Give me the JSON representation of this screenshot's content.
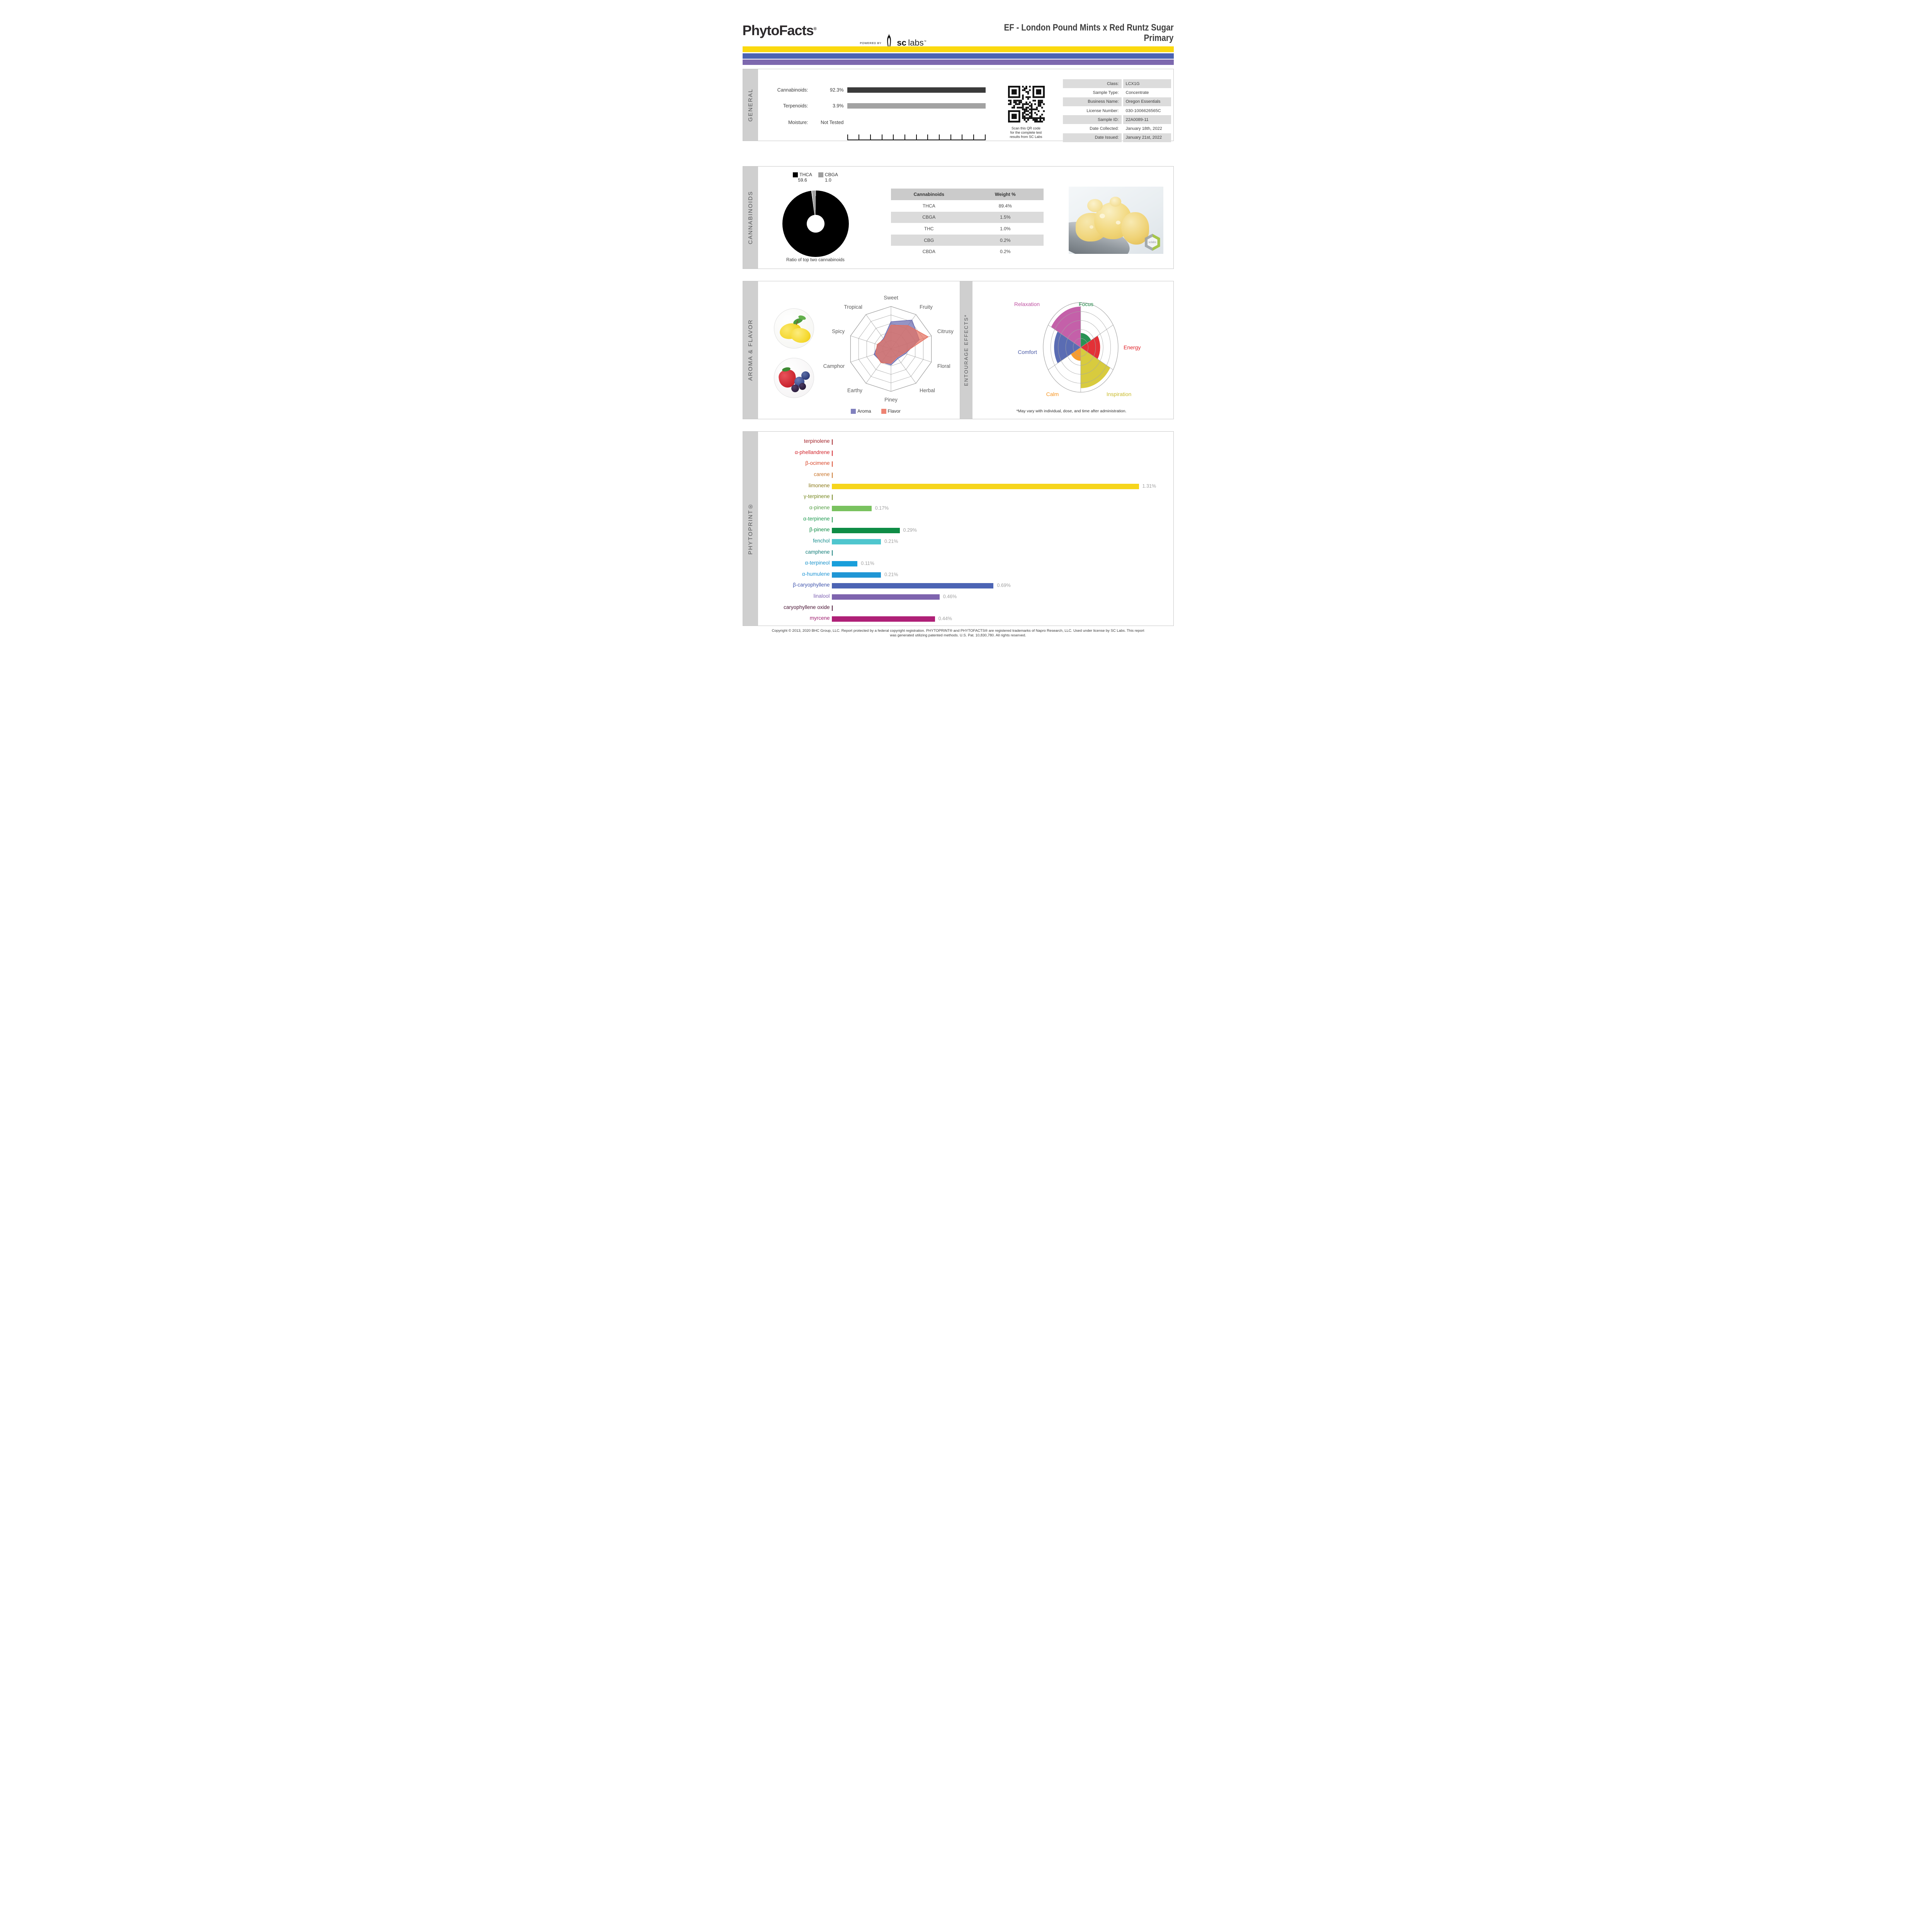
{
  "header": {
    "brand": "PhytoFacts",
    "brand_mark": "®",
    "powered_by": "POWERED BY",
    "lab_bold": "sc",
    "lab_light": "labs",
    "lab_tm": "™",
    "title": [
      "EF - London Pound Mints x Red Runtz Sugar",
      "Primary"
    ]
  },
  "accent_colors": {
    "yellow": "#FBD90E",
    "blue": "#4C64B2",
    "purple": "#7D68AE"
  },
  "general": {
    "section_label": "GENERAL",
    "summary": [
      {
        "label": "Cannabinoids:",
        "value": "92.3%",
        "bar_color": "#3A3A3A"
      },
      {
        "label": "Terpenoids:",
        "value": "3.9%",
        "bar_color": "#A2A2A2"
      },
      {
        "label": "Moisture:",
        "value": "Not Tested"
      }
    ],
    "qr_caption": [
      "Scan this QR code",
      "for the complete test",
      "results from SC Labs"
    ],
    "info_rows": [
      {
        "label": "Class:",
        "value": "LCX1G"
      },
      {
        "label": "Sample Type:",
        "value": "Concentrate"
      },
      {
        "label": "Business Name:",
        "value": "Oregon Essentials"
      },
      {
        "label": "License Number:",
        "value": "030-1006626565C"
      },
      {
        "label": "Sample ID:",
        "value": "22A0089-11"
      },
      {
        "label": "Date Collected:",
        "value": "January 18th, 2022"
      },
      {
        "label": "Date Issued:",
        "value": "January 21st, 2022"
      }
    ],
    "row_gray": "#DCDCDC"
  },
  "cannabinoids": {
    "section_label": "CANNABINOIDS",
    "donut_caption": "Ratio of top two cannabinoids",
    "table_headers": [
      "Cannabinoids",
      "Weight %"
    ],
    "table_rows": [
      [
        "THCA",
        "89.4%"
      ],
      [
        "CBGA",
        "1.5%"
      ],
      [
        "THC",
        "1.0%"
      ],
      [
        "CBG",
        "0.2%"
      ],
      [
        "CBDA",
        "0.2%"
      ]
    ],
    "header_gray": "#CBCBCB",
    "alt_gray": "#DBDBDB",
    "photo_watermark": "sclabs"
  },
  "aroma_flavor": {
    "section_label": "AROMA & FLAVOR"
  },
  "entourage": {
    "section_label": "ENTOURAGE EFFECTS*"
  },
  "phytoprint": {
    "section_label": "PHYTOPRINT®"
  },
  "footer": {
    "lines": [
      "Copyright © 2013, 2020 BHC Group, LLC. Report protected by a federal copyright registration. PHYTOPRINT® and PHYTOFACTS® are registered trademarks of Napro Research, LLC. Used under license by SC Labs. This report",
      "was generated utilizing patented methods. U.S. Pat. 10,830,780. All rights reserved."
    ]
  },
  "chart_data": [
    {
      "type": "pie",
      "donut": true,
      "title": "Ratio of top two cannabinoids",
      "labels": [
        "THCA",
        "CBGA"
      ],
      "values": [
        59.6,
        1.0
      ],
      "colors": [
        "#000000",
        "#9E9E9E"
      ],
      "legend_position": "top"
    },
    {
      "type": "radar",
      "title": "Aroma & Flavor",
      "categories": [
        "Sweet",
        "Fruity",
        "Citrusy",
        "Floral",
        "Herbal",
        "Piney",
        "Earthy",
        "Camphor",
        "Spicy",
        "Tropical"
      ],
      "rmax": 5,
      "rings": 5,
      "series": [
        {
          "name": "Aroma",
          "color": "#6B6BB0",
          "swatch": "#8080BE",
          "fill_opacity": 0.72,
          "values": [
            3.2,
            4.2,
            3.5,
            1.8,
            1.4,
            1.9,
            1.9,
            2.1,
            1.6,
            1.5
          ]
        },
        {
          "name": "Flavor",
          "color": "#E4705F",
          "swatch": "#EE8372",
          "fill_opacity": 0.72,
          "values": [
            2.8,
            3.4,
            4.6,
            1.6,
            1.2,
            1.7,
            2.0,
            1.9,
            1.7,
            1.4
          ]
        }
      ],
      "grid_color": "#9B9B9B",
      "label_color": "#5A5A5A"
    },
    {
      "type": "polar-sector",
      "title": "Entourage Effects",
      "rmax": 5,
      "rings": 5,
      "sectors": [
        {
          "name": "Focus",
          "value": 1.6,
          "color": "#168945",
          "label_color": "#16823F"
        },
        {
          "name": "Energy",
          "value": 2.6,
          "color": "#E11F26",
          "label_color": "#E01F26"
        },
        {
          "name": "Inspiration",
          "value": 4.55,
          "color": "#D5C72E",
          "label_color": "#C9BB2A"
        },
        {
          "name": "Calm",
          "value": 1.5,
          "color": "#F7941D",
          "label_color": "#F7941D"
        },
        {
          "name": "Comfort",
          "value": 3.55,
          "color": "#4C5FAD",
          "label_color": "#4B5BA7"
        },
        {
          "name": "Relaxation",
          "value": 4.55,
          "color": "#BF52A2",
          "label_color": "#BF52A2"
        }
      ],
      "footnote": "*May vary with individual, dose, and time after administration.",
      "grid_color": "#A5A5A5"
    },
    {
      "type": "bar",
      "orientation": "horizontal",
      "title": "Phytoprint terpene profile (%)",
      "xlabel": "",
      "ylabel": "",
      "xlim": [
        0,
        1.35
      ],
      "categories": [
        "terpinolene",
        "α-phellandrene",
        "β-ocimene",
        "carene",
        "limonene",
        "γ-terpinene",
        "α-pinene",
        "α-terpinene",
        "β-pinene",
        "fenchol",
        "camphene",
        "α-terpineol",
        "α-humulene",
        "β-caryophyllene",
        "linalool",
        "caryophyllene oxide",
        "myrcene"
      ],
      "values": [
        0,
        0,
        0,
        0,
        1.31,
        0,
        0.17,
        0,
        0.29,
        0.21,
        0,
        0.11,
        0.21,
        0.69,
        0.46,
        0,
        0.44
      ],
      "value_labels": [
        "",
        "",
        "",
        "",
        "1.31%",
        "",
        "0.17%",
        "",
        "0.29%",
        "0.21%",
        "",
        "0.11%",
        "0.21%",
        "0.69%",
        "0.46%",
        "",
        "0.44%"
      ],
      "label_colors": [
        "#A3242B",
        "#D2232A",
        "#D9472B",
        "#C8742B",
        "#8C7B1B",
        "#76871F",
        "#56A046",
        "#1F9A50",
        "#0E8C45",
        "#188F8F",
        "#157F7B",
        "#1893CB",
        "#2096D5",
        "#4055AD",
        "#7E62B2",
        "#4A1535",
        "#9E1D6E"
      ],
      "bar_colors": [
        "#A3242B",
        "#D2232A",
        "#D9472B",
        "#C8742B",
        "#F6D51C",
        "#76871F",
        "#79C25F",
        "#1F9A50",
        "#0E8C45",
        "#4FC6CE",
        "#157F7B",
        "#199FDB",
        "#2096D5",
        "#4C64B4",
        "#7E64AE",
        "#4A1535",
        "#AF2077"
      ],
      "value_label_color": "#A0A0A0"
    }
  ]
}
